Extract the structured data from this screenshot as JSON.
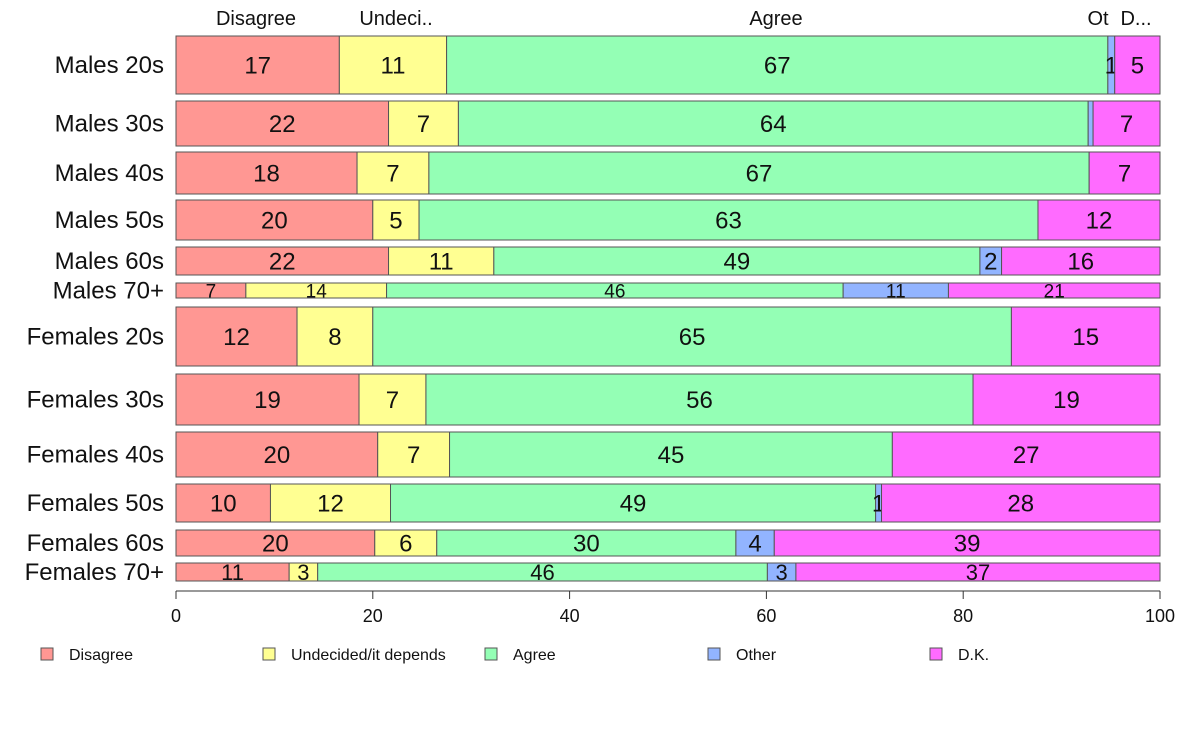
{
  "chart_data": {
    "type": "bar",
    "orientation": "horizontal",
    "stacked": true,
    "variable_width": true,
    "title": "",
    "xlabel": "",
    "ylabel": "",
    "xlim": [
      0,
      100
    ],
    "x_ticks": [
      "0",
      "20",
      "40",
      "60",
      "80",
      "100"
    ],
    "grid": false,
    "legend_position": "bottom",
    "top_labels": [
      "Disagree",
      "Undeci..",
      "Agree",
      "Ot",
      "D..."
    ],
    "series": [
      {
        "name": "Disagree",
        "color": "#FF9793"
      },
      {
        "name": "Undecided/it depends",
        "color": "#FFFF92"
      },
      {
        "name": "Agree",
        "color": "#94FFB5"
      },
      {
        "name": "Other",
        "color": "#92B4FF"
      },
      {
        "name": "D.K.",
        "color": "#FF6BFF"
      }
    ],
    "categories": [
      {
        "label": "Males 20s",
        "values": [
          16.6,
          10.9,
          67.2,
          0.7,
          4.6
        ],
        "labels": [
          "17",
          "11",
          "67",
          "1",
          "5"
        ]
      },
      {
        "label": "Males 30s",
        "values": [
          21.6,
          7.1,
          64.0,
          0.5,
          6.8
        ],
        "labels": [
          "22",
          "7",
          "64",
          "",
          "7"
        ]
      },
      {
        "label": "Males 40s",
        "values": [
          18.4,
          7.3,
          67.1,
          0.0,
          7.2
        ],
        "labels": [
          "18",
          "7",
          "67",
          "",
          "7"
        ]
      },
      {
        "label": "Males 50s",
        "values": [
          20.0,
          4.7,
          62.9,
          0.0,
          12.4
        ],
        "labels": [
          "20",
          "5",
          "63",
          "",
          "12"
        ]
      },
      {
        "label": "Males 60s",
        "values": [
          21.6,
          10.7,
          49.4,
          2.2,
          16.1
        ],
        "labels": [
          "22",
          "11",
          "49",
          "2",
          "16"
        ]
      },
      {
        "label": "Males 70+",
        "values": [
          7.1,
          14.3,
          46.4,
          10.7,
          21.5
        ],
        "labels": [
          "7",
          "14",
          "46",
          "11",
          "21"
        ]
      },
      {
        "label": "Females 20s",
        "values": [
          12.3,
          7.7,
          64.9,
          0.0,
          15.1
        ],
        "labels": [
          "12",
          "8",
          "65",
          "",
          "15"
        ]
      },
      {
        "label": "Females 30s",
        "values": [
          18.6,
          6.8,
          55.6,
          0.0,
          19.0
        ],
        "labels": [
          "19",
          "7",
          "56",
          "",
          "19"
        ]
      },
      {
        "label": "Females 40s",
        "values": [
          20.5,
          7.3,
          45.0,
          0.0,
          27.2
        ],
        "labels": [
          "20",
          "7",
          "45",
          "",
          "27"
        ]
      },
      {
        "label": "Females 50s",
        "values": [
          9.6,
          12.2,
          49.3,
          0.6,
          28.3
        ],
        "labels": [
          "10",
          "12",
          "49",
          "1",
          "28"
        ]
      },
      {
        "label": "Females 60s",
        "values": [
          20.2,
          6.3,
          30.4,
          3.9,
          39.2
        ],
        "labels": [
          "20",
          "6",
          "30",
          "4",
          "39"
        ]
      },
      {
        "label": "Females 70+",
        "values": [
          11.5,
          2.9,
          45.7,
          2.9,
          37.0
        ],
        "labels": [
          "11",
          "3",
          "46",
          "3",
          "37"
        ]
      }
    ]
  }
}
